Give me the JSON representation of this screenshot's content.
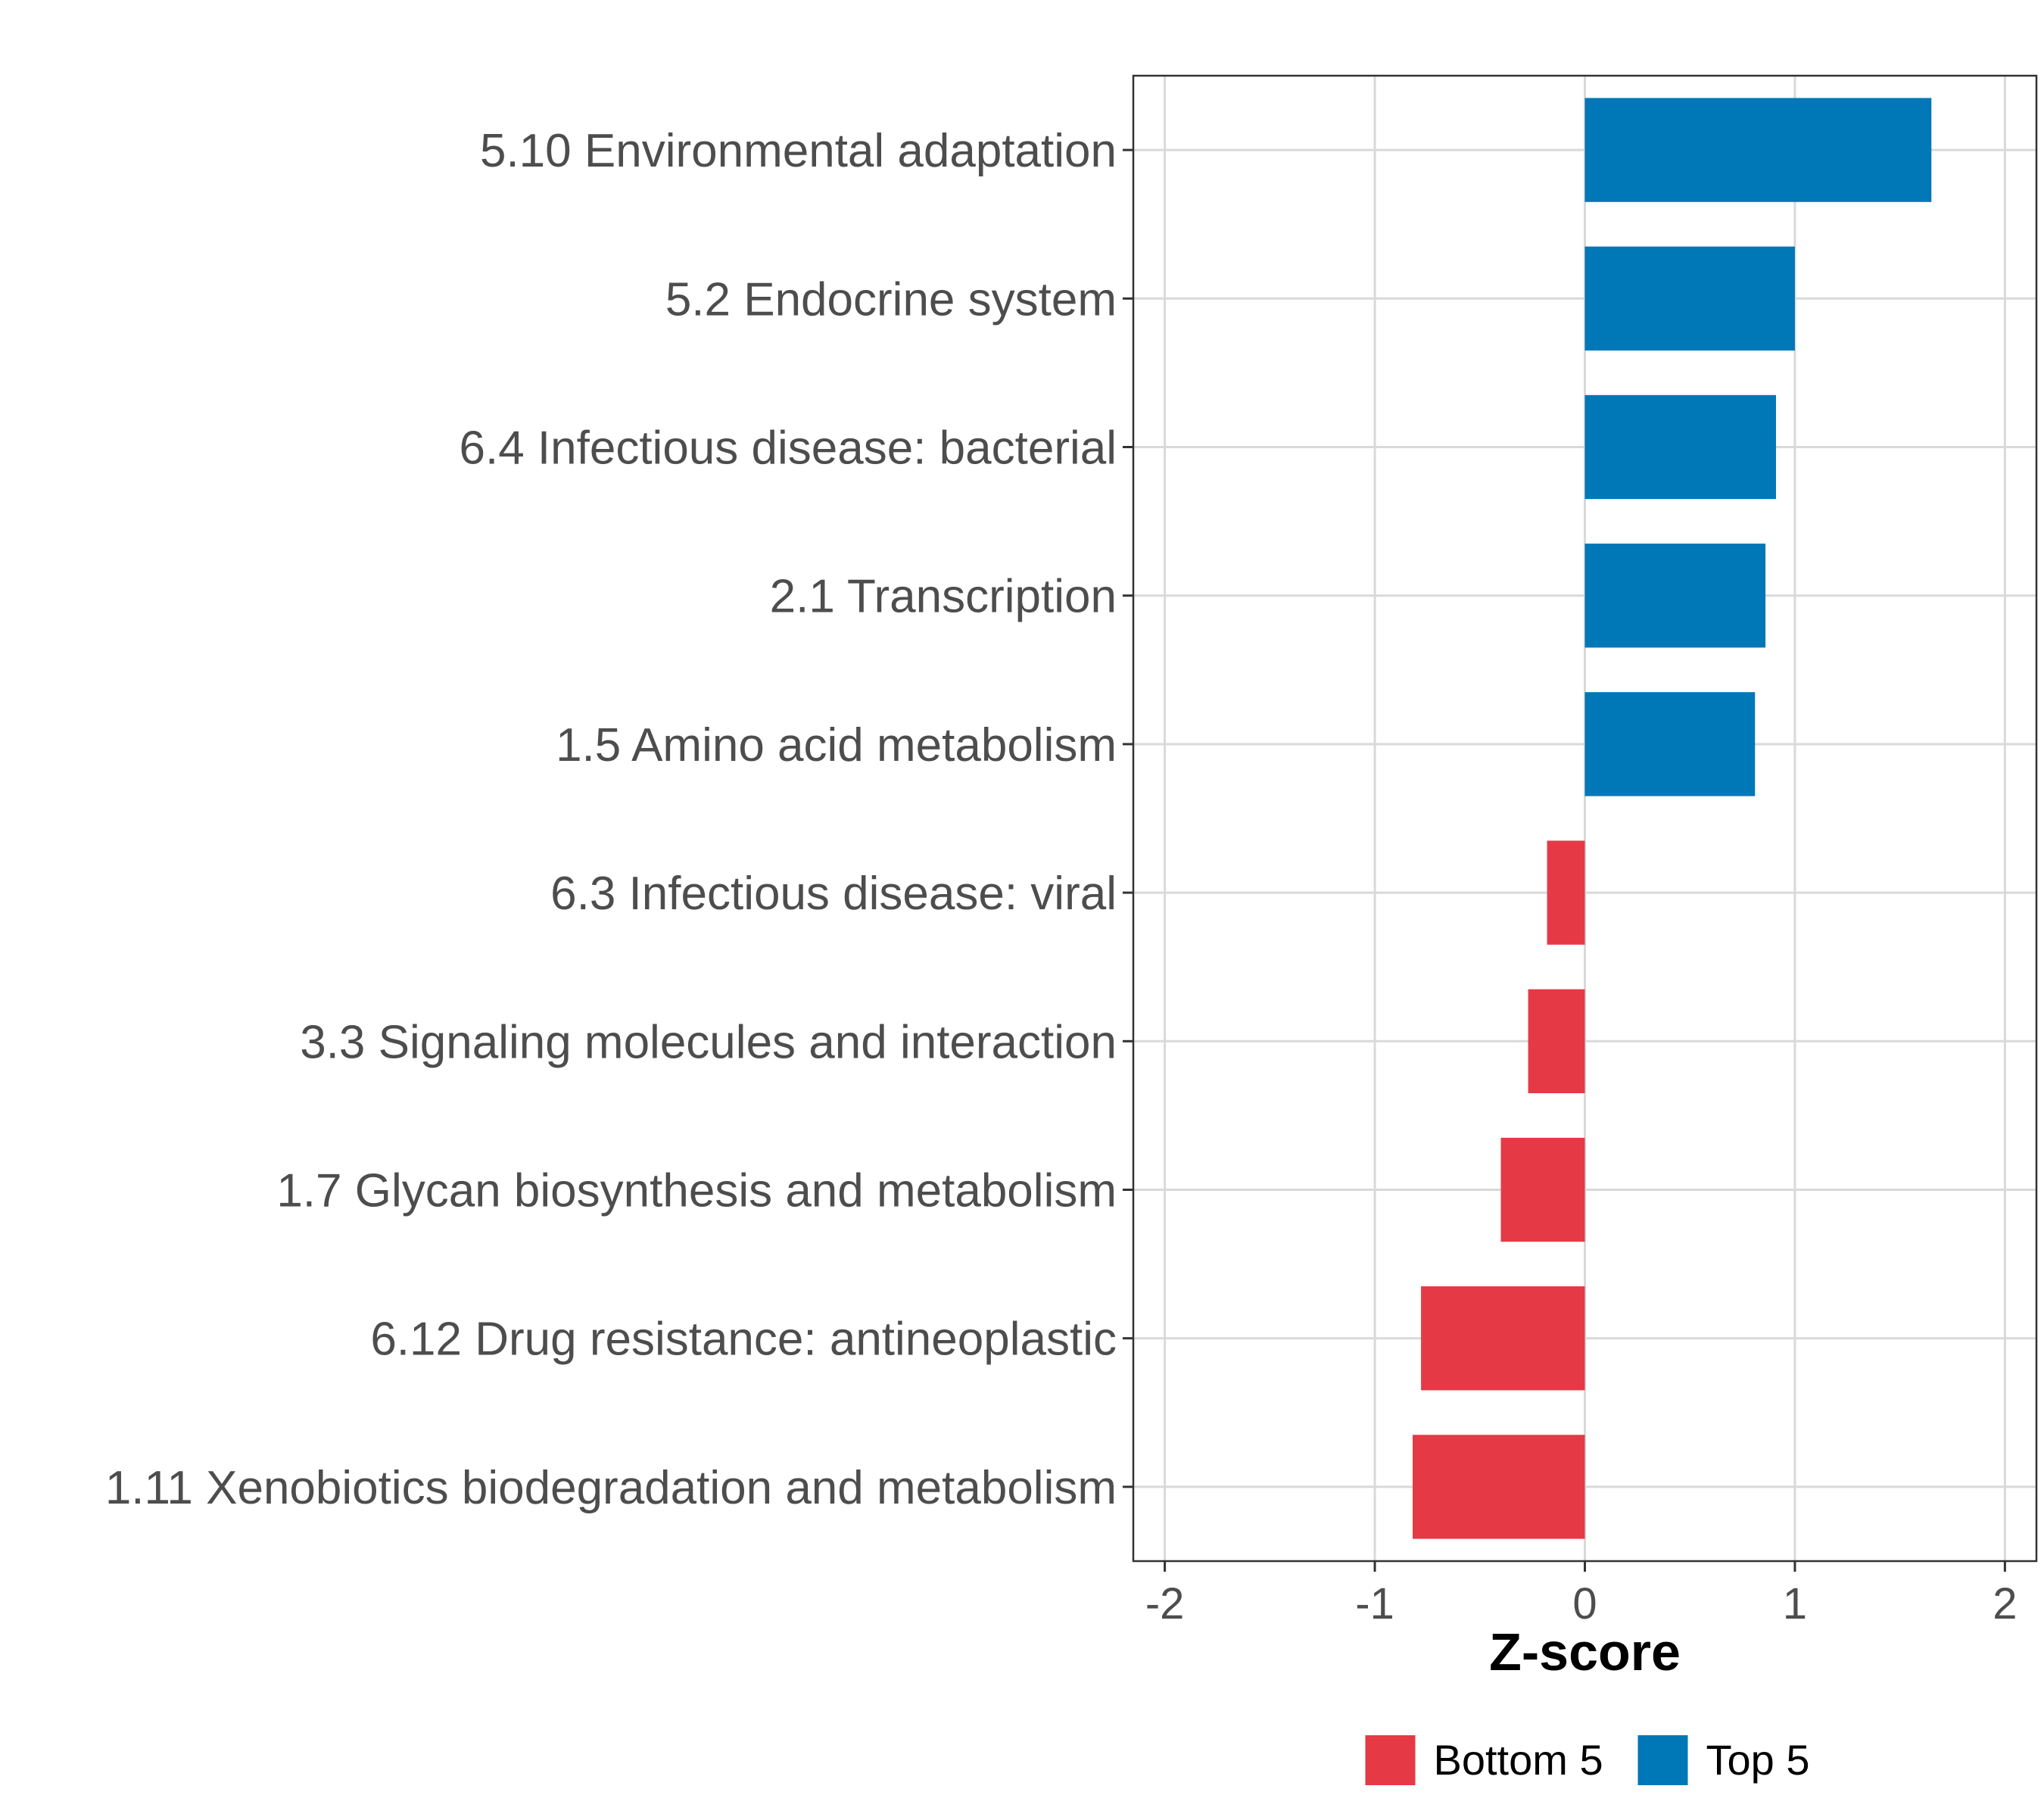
{
  "chart_data": {
    "type": "bar",
    "orientation": "horizontal",
    "categories": [
      "5.10 Environmental adaptation",
      "5.2 Endocrine system",
      "6.4 Infectious disease: bacterial",
      "2.1 Transcription",
      "1.5 Amino acid metabolism",
      "6.3 Infectious disease: viral",
      "3.3 Signaling molecules and interaction",
      "1.7 Glycan biosynthesis and metabolism",
      "6.12 Drug resistance: antineoplastic",
      "1.11 Xenobiotics biodegradation and metabolism"
    ],
    "values": [
      1.65,
      1.0,
      0.91,
      0.86,
      0.81,
      -0.18,
      -0.27,
      -0.4,
      -0.78,
      -0.82
    ],
    "groups": [
      "Top 5",
      "Top 5",
      "Top 5",
      "Top 5",
      "Top 5",
      "Bottom 5",
      "Bottom 5",
      "Bottom 5",
      "Bottom 5",
      "Bottom 5"
    ],
    "xlabel": "Z-score",
    "ylabel": "",
    "xlim": [
      -2.15,
      2.15
    ],
    "xticks": [
      -2,
      -1,
      0,
      1,
      2
    ],
    "xtick_labels": [
      "-2",
      "-1",
      "0",
      "1",
      "2"
    ],
    "grid": true,
    "legend": {
      "placement": "bottom",
      "entries": [
        {
          "label": "Bottom 5",
          "color": "#e63946"
        },
        {
          "label": "Top 5",
          "color": "#0077b6"
        }
      ]
    },
    "colors": {
      "Top 5": "#0077b6",
      "Bottom 5": "#e63946"
    }
  }
}
